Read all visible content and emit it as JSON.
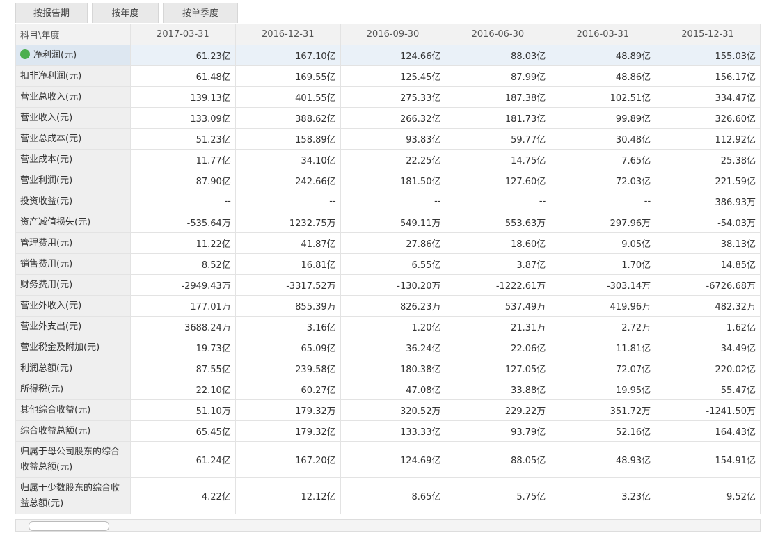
{
  "tabs": [
    "按报告期",
    "按年度",
    "按单季度"
  ],
  "table": {
    "header": [
      "科目\\年度",
      "2017-03-31",
      "2016-12-31",
      "2016-09-30",
      "2016-06-30",
      "2016-03-31",
      "2015-12-31"
    ],
    "rows": [
      [
        "净利润(元)",
        "61.23亿",
        "167.10亿",
        "124.66亿",
        "88.03亿",
        "48.89亿",
        "155.03亿"
      ],
      [
        "扣非净利润(元)",
        "61.48亿",
        "169.55亿",
        "125.45亿",
        "87.99亿",
        "48.86亿",
        "156.17亿"
      ],
      [
        "营业总收入(元)",
        "139.13亿",
        "401.55亿",
        "275.33亿",
        "187.38亿",
        "102.51亿",
        "334.47亿"
      ],
      [
        "营业收入(元)",
        "133.09亿",
        "388.62亿",
        "266.32亿",
        "181.73亿",
        "99.89亿",
        "326.60亿"
      ],
      [
        "营业总成本(元)",
        "51.23亿",
        "158.89亿",
        "93.83亿",
        "59.77亿",
        "30.48亿",
        "112.92亿"
      ],
      [
        "营业成本(元)",
        "11.77亿",
        "34.10亿",
        "22.25亿",
        "14.75亿",
        "7.65亿",
        "25.38亿"
      ],
      [
        "营业利润(元)",
        "87.90亿",
        "242.66亿",
        "181.50亿",
        "127.60亿",
        "72.03亿",
        "221.59亿"
      ],
      [
        "投资收益(元)",
        "--",
        "--",
        "--",
        "--",
        "--",
        "386.93万"
      ],
      [
        "资产减值损失(元)",
        "-535.64万",
        "1232.75万",
        "549.11万",
        "553.63万",
        "297.96万",
        "-54.03万"
      ],
      [
        "管理费用(元)",
        "11.22亿",
        "41.87亿",
        "27.86亿",
        "18.60亿",
        "9.05亿",
        "38.13亿"
      ],
      [
        "销售费用(元)",
        "8.52亿",
        "16.81亿",
        "6.55亿",
        "3.87亿",
        "1.70亿",
        "14.85亿"
      ],
      [
        "财务费用(元)",
        "-2949.43万",
        "-3317.52万",
        "-130.20万",
        "-1222.61万",
        "-303.14万",
        "-6726.68万"
      ],
      [
        "营业外收入(元)",
        "177.01万",
        "855.39万",
        "826.23万",
        "537.49万",
        "419.96万",
        "482.32万"
      ],
      [
        "营业外支出(元)",
        "3688.24万",
        "3.16亿",
        "1.20亿",
        "21.31万",
        "2.72万",
        "1.62亿"
      ],
      [
        "营业税金及附加(元)",
        "19.73亿",
        "65.09亿",
        "36.24亿",
        "22.06亿",
        "11.81亿",
        "34.49亿"
      ],
      [
        "利润总额(元)",
        "87.55亿",
        "239.58亿",
        "180.38亿",
        "127.05亿",
        "72.07亿",
        "220.02亿"
      ],
      [
        "所得税(元)",
        "22.10亿",
        "60.27亿",
        "47.08亿",
        "33.88亿",
        "19.95亿",
        "55.47亿"
      ],
      [
        "其他综合收益(元)",
        "51.10万",
        "179.32万",
        "320.52万",
        "229.22万",
        "351.72万",
        "-1241.50万"
      ],
      [
        "综合收益总额(元)",
        "65.45亿",
        "179.32亿",
        "133.33亿",
        "93.79亿",
        "52.16亿",
        "164.43亿"
      ],
      [
        "归属于母公司股东的综合收益总额(元)",
        "61.24亿",
        "167.20亿",
        "124.69亿",
        "88.05亿",
        "48.93亿",
        "154.91亿"
      ],
      [
        "归属于少数股东的综合收益总额(元)",
        "4.22亿",
        "12.12亿",
        "8.65亿",
        "5.75亿",
        "3.23亿",
        "9.52亿"
      ]
    ]
  }
}
